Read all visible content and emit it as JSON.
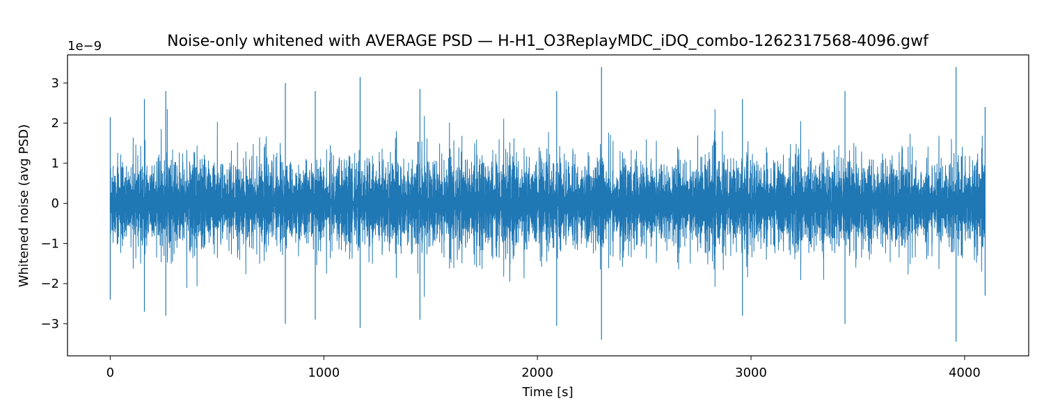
{
  "chart_data": {
    "type": "line",
    "title": "Noise-only whitened with AVERAGE PSD — H-H1_O3ReplayMDC_iDQ_combo-1262317568-4096.gwf",
    "xlabel": "Time [s]",
    "ylabel": "Whitened noise (avg PSD)",
    "y_offset_label": "1e−9",
    "xlim": [
      -200,
      4300
    ],
    "ylim": [
      -3.8e-09,
      3.7e-09
    ],
    "xticks": [
      0,
      1000,
      2000,
      3000,
      4000
    ],
    "xtick_labels": [
      "0",
      "1000",
      "2000",
      "3000",
      "4000"
    ],
    "yticks": [
      -3e-09,
      -2e-09,
      -1e-09,
      0,
      1e-09,
      2e-09,
      3e-09
    ],
    "ytick_labels": [
      "−3",
      "−2",
      "−1",
      "0",
      "1",
      "2",
      "3"
    ],
    "grid": false,
    "series": [
      {
        "color": "#1f77b4",
        "x_range": [
          0,
          4096
        ],
        "peaks": [
          {
            "x": 0,
            "y": 2.15e-09
          },
          {
            "x": 0,
            "y": -2.4e-09
          },
          {
            "x": 160,
            "y": 2.6e-09
          },
          {
            "x": 160,
            "y": -2.7e-09
          },
          {
            "x": 260,
            "y": 2.8e-09
          },
          {
            "x": 260,
            "y": -2.8e-09
          },
          {
            "x": 820,
            "y": 3e-09
          },
          {
            "x": 820,
            "y": -3e-09
          },
          {
            "x": 960,
            "y": 2.8e-09
          },
          {
            "x": 960,
            "y": -2.9e-09
          },
          {
            "x": 1170,
            "y": 3.15e-09
          },
          {
            "x": 1170,
            "y": -3.1e-09
          },
          {
            "x": 1450,
            "y": 2.85e-09
          },
          {
            "x": 1450,
            "y": -2.9e-09
          },
          {
            "x": 2090,
            "y": 2.8e-09
          },
          {
            "x": 2090,
            "y": -3.05e-09
          },
          {
            "x": 2300,
            "y": 3.4e-09
          },
          {
            "x": 2300,
            "y": -3.4e-09
          },
          {
            "x": 2960,
            "y": 2.6e-09
          },
          {
            "x": 2960,
            "y": -2.8e-09
          },
          {
            "x": 3440,
            "y": 2.8e-09
          },
          {
            "x": 3440,
            "y": -3e-09
          },
          {
            "x": 3960,
            "y": 3.4e-09
          },
          {
            "x": 3960,
            "y": -3.45e-09
          },
          {
            "x": 4096,
            "y": 2.4e-09
          },
          {
            "x": 4096,
            "y": -2.3e-09
          }
        ]
      }
    ]
  }
}
